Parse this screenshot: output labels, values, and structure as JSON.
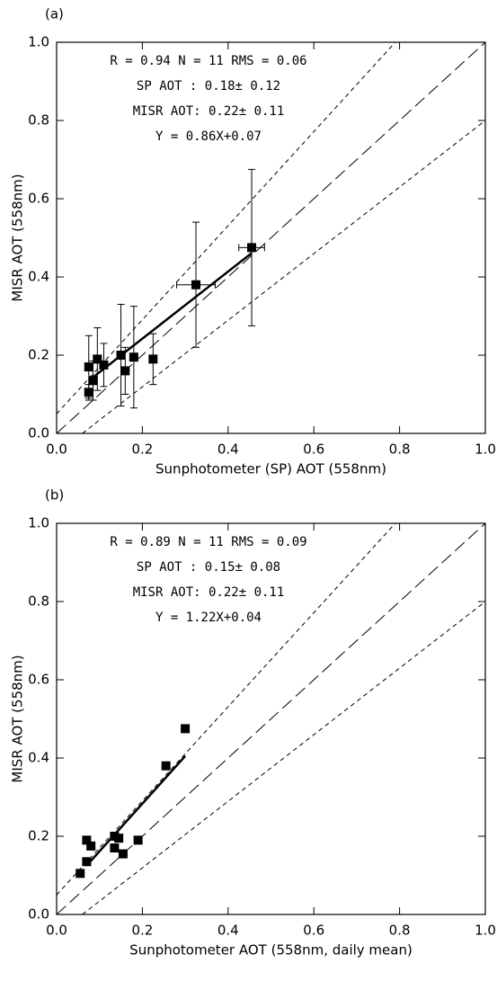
{
  "chart_data": [
    {
      "type": "scatter",
      "panel_label": "(a)",
      "x_label": "Sunphotometer (SP) AOT (558nm)",
      "y_label": "MISR AOT (558nm)",
      "annotations": [
        "R = 0.94  N = 11  RMS = 0.06",
        "SP AOT  : 0.18± 0.12",
        "MISR AOT: 0.22± 0.11",
        "Y = 0.86X+0.07"
      ],
      "xlim": [
        0,
        1
      ],
      "ylim": [
        0,
        1
      ],
      "xticks": [
        {
          "value": 0,
          "label": "0.0"
        },
        {
          "value": 0.2,
          "label": "0.2"
        },
        {
          "value": 0.4,
          "label": "0.4"
        },
        {
          "value": 0.6,
          "label": "0.6"
        },
        {
          "value": 0.8,
          "label": "0.8"
        },
        {
          "value": 1,
          "label": "1.0"
        }
      ],
      "yticks": [
        {
          "value": 0,
          "label": "0.0"
        },
        {
          "value": 0.2,
          "label": "0.2"
        },
        {
          "value": 0.4,
          "label": "0.4"
        },
        {
          "value": 0.6,
          "label": "0.6"
        },
        {
          "value": 0.8,
          "label": "0.8"
        },
        {
          "value": 1,
          "label": "1.0"
        }
      ],
      "grid": false,
      "color": "#000000",
      "x": [
        0.075,
        0.075,
        0.085,
        0.095,
        0.11,
        0.15,
        0.16,
        0.18,
        0.225,
        0.325,
        0.455
      ],
      "values": [
        0.105,
        0.17,
        0.135,
        0.19,
        0.175,
        0.2,
        0.16,
        0.195,
        0.19,
        0.38,
        0.475
      ],
      "yerr": [
        0.02,
        0.08,
        0.05,
        0.08,
        0.055,
        0.13,
        0.06,
        0.13,
        0.065,
        0.16,
        0.2
      ],
      "xerr": [
        null,
        null,
        null,
        null,
        null,
        null,
        null,
        null,
        null,
        0.045,
        0.03
      ],
      "fit": {
        "x": [
          0.075,
          0.455
        ],
        "y": [
          0.135,
          0.461
        ]
      },
      "reference_lines": [
        {
          "x": [
            0,
            1
          ],
          "y": [
            0,
            1
          ],
          "dash": "long"
        },
        {
          "x": [
            0,
            0.79
          ],
          "y": [
            0.05,
            1
          ],
          "dash": "short"
        },
        {
          "x": [
            0.06,
            1
          ],
          "y": [
            0,
            0.8
          ],
          "dash": "short"
        }
      ]
    },
    {
      "type": "scatter",
      "panel_label": "(b)",
      "x_label": "Sunphotometer AOT (558nm, daily mean)",
      "y_label": "MISR AOT (558nm)",
      "annotations": [
        "R = 0.89  N = 11  RMS = 0.09",
        "SP AOT  : 0.15± 0.08",
        "MISR AOT: 0.22± 0.11",
        "Y = 1.22X+0.04"
      ],
      "xlim": [
        0,
        1
      ],
      "ylim": [
        0,
        1
      ],
      "xticks": [
        {
          "value": 0,
          "label": "0.0"
        },
        {
          "value": 0.2,
          "label": "0.2"
        },
        {
          "value": 0.4,
          "label": "0.4"
        },
        {
          "value": 0.6,
          "label": "0.6"
        },
        {
          "value": 0.8,
          "label": "0.8"
        },
        {
          "value": 1,
          "label": "1.0"
        }
      ],
      "yticks": [
        {
          "value": 0,
          "label": "0.0"
        },
        {
          "value": 0.2,
          "label": "0.2"
        },
        {
          "value": 0.4,
          "label": "0.4"
        },
        {
          "value": 0.6,
          "label": "0.6"
        },
        {
          "value": 0.8,
          "label": "0.8"
        },
        {
          "value": 1,
          "label": "1.0"
        }
      ],
      "grid": false,
      "color": "#000000",
      "x": [
        0.055,
        0.07,
        0.07,
        0.08,
        0.135,
        0.135,
        0.145,
        0.155,
        0.19,
        0.255,
        0.3
      ],
      "values": [
        0.105,
        0.19,
        0.135,
        0.175,
        0.17,
        0.2,
        0.195,
        0.155,
        0.19,
        0.38,
        0.475
      ],
      "fit": {
        "x": [
          0.07,
          0.3
        ],
        "y": [
          0.125,
          0.405
        ]
      },
      "reference_lines": [
        {
          "x": [
            0,
            1
          ],
          "y": [
            0,
            1
          ],
          "dash": "long"
        },
        {
          "x": [
            0,
            0.79
          ],
          "y": [
            0.05,
            1
          ],
          "dash": "short"
        },
        {
          "x": [
            0.06,
            1
          ],
          "y": [
            0,
            0.8
          ],
          "dash": "short"
        }
      ]
    }
  ]
}
